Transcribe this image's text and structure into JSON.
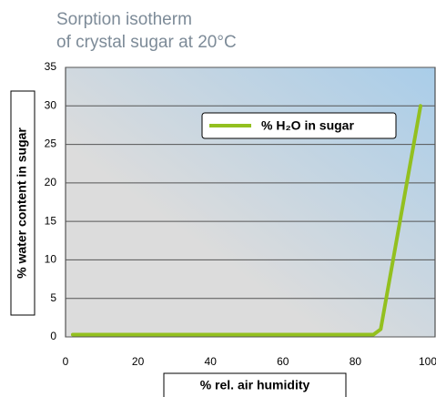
{
  "chart_data": {
    "type": "line",
    "title": [
      "Sorption isotherm",
      "of crystal sugar at 20°C"
    ],
    "xlabel": "% rel. air humidity",
    "ylabel": "% water content in sugar",
    "series": [
      {
        "name": "% H₂O in sugar",
        "color": "#93c01f",
        "x": [
          2,
          85,
          87,
          98
        ],
        "values": [
          0.3,
          0.3,
          1,
          30
        ]
      }
    ],
    "xlim": [
      0,
      100
    ],
    "xticks": [
      0,
      20,
      40,
      60,
      80,
      100
    ],
    "ylim": [
      0,
      35
    ],
    "yticks": [
      0,
      5,
      10,
      15,
      20,
      25,
      30,
      35
    ],
    "grid": true,
    "legend": "top-right"
  }
}
